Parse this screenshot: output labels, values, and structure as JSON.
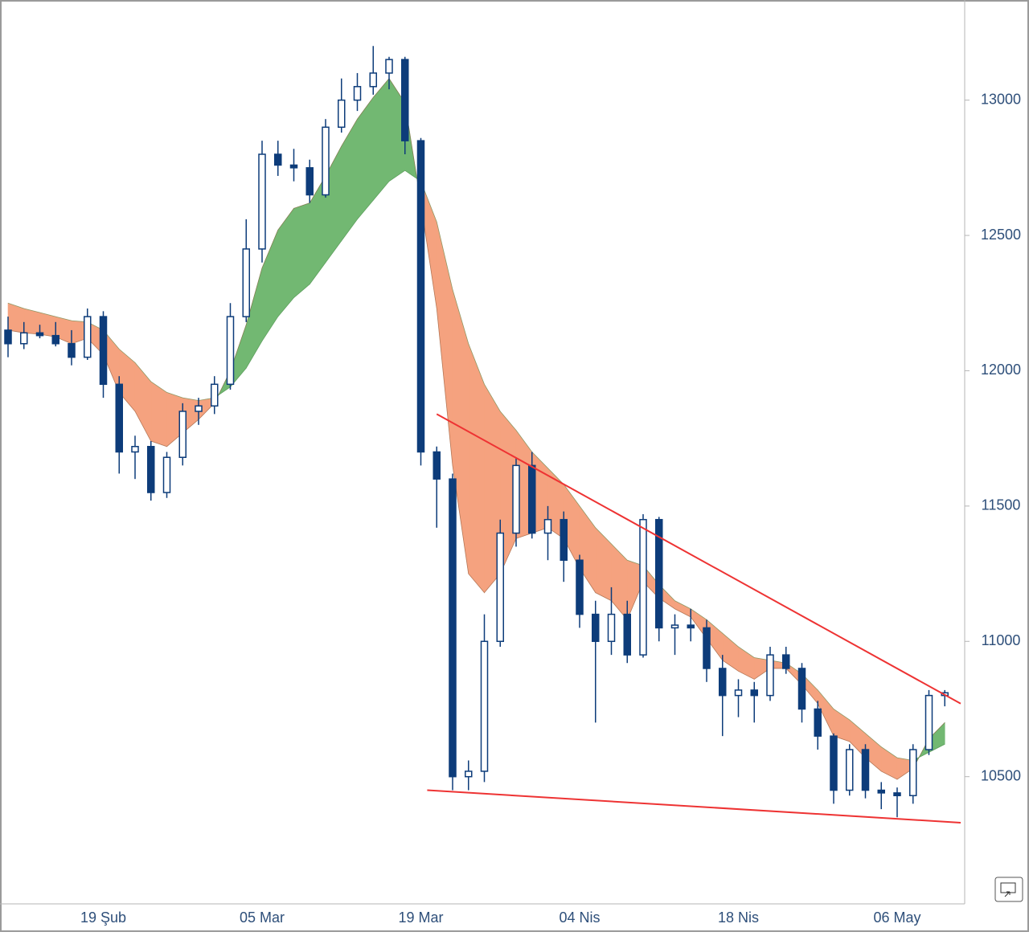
{
  "chart_data": {
    "type": "candlestick",
    "categories": [
      null,
      null,
      null,
      null,
      null,
      null,
      "19 Şub",
      null,
      null,
      null,
      null,
      null,
      null,
      null,
      null,
      null,
      "05 Mar",
      null,
      null,
      null,
      null,
      null,
      null,
      null,
      null,
      null,
      "19 Mar",
      null,
      null,
      null,
      null,
      null,
      null,
      null,
      null,
      null,
      "04 Nis",
      null,
      null,
      null,
      null,
      null,
      null,
      null,
      null,
      null,
      "18 Nis",
      null,
      null,
      null,
      null,
      null,
      null,
      null,
      null,
      null,
      "06 May",
      null,
      null,
      null
    ],
    "open": [
      12150,
      12100,
      12140,
      12130,
      12100,
      12050,
      12200,
      11950,
      11700,
      11720,
      11550,
      11680,
      11850,
      11870,
      11950,
      12200,
      12450,
      12800,
      12760,
      12750,
      12650,
      12900,
      13000,
      13050,
      13100,
      13150,
      12850,
      11700,
      11600,
      10500,
      10520,
      11000,
      11400,
      11650,
      11400,
      11450,
      11300,
      11100,
      11000,
      11100,
      10950,
      11450,
      11050,
      11060,
      11050,
      10900,
      10800,
      10820,
      10800,
      10950,
      10900,
      10750,
      10650,
      10450,
      10600,
      10450,
      10440,
      10430,
      10600,
      10800
    ],
    "high": [
      12200,
      12180,
      12170,
      12180,
      12150,
      12230,
      12220,
      11980,
      11760,
      11740,
      11700,
      11880,
      11900,
      11980,
      12250,
      12560,
      12850,
      12850,
      12820,
      12780,
      12930,
      13080,
      13100,
      13200,
      13160,
      13160,
      12860,
      11720,
      11620,
      10560,
      11100,
      11450,
      11680,
      11700,
      11500,
      11480,
      11320,
      11150,
      11200,
      11150,
      11470,
      11460,
      11100,
      11120,
      11080,
      10950,
      10860,
      10850,
      10980,
      10980,
      10920,
      10780,
      10660,
      10620,
      10620,
      10480,
      10460,
      10620,
      10820,
      10820
    ],
    "low": [
      12050,
      12080,
      12120,
      12090,
      12020,
      12040,
      11900,
      11620,
      11600,
      11520,
      11530,
      11650,
      11800,
      11840,
      11930,
      12180,
      12400,
      12720,
      12700,
      12620,
      12640,
      12880,
      12960,
      13020,
      13040,
      12800,
      11650,
      11420,
      10450,
      10450,
      10480,
      10980,
      11350,
      11380,
      11300,
      11220,
      11050,
      10700,
      10950,
      10920,
      10940,
      11000,
      10950,
      11000,
      10850,
      10650,
      10720,
      10700,
      10780,
      10880,
      10700,
      10600,
      10400,
      10430,
      10420,
      10380,
      10350,
      10400,
      10580,
      10760
    ],
    "close": [
      12100,
      12140,
      12130,
      12100,
      12050,
      12200,
      11950,
      11700,
      11720,
      11550,
      11680,
      11850,
      11870,
      11950,
      12200,
      12450,
      12800,
      12760,
      12750,
      12650,
      12900,
      13000,
      13050,
      13100,
      13150,
      12850,
      11700,
      11600,
      10500,
      10520,
      11000,
      11400,
      11650,
      11400,
      11450,
      11300,
      11100,
      11000,
      11100,
      10950,
      11450,
      11050,
      11060,
      11050,
      10900,
      10800,
      10820,
      10800,
      10950,
      10900,
      10750,
      10650,
      10450,
      10600,
      10450,
      10440,
      10430,
      10600,
      10800,
      10810
    ],
    "candle_color": "#0d3c7a",
    "ema_fast": [
      12150,
      12140,
      12135,
      12125,
      12100,
      12120,
      12060,
      11920,
      11850,
      11740,
      11720,
      11770,
      11820,
      11880,
      12000,
      12170,
      12380,
      12520,
      12600,
      12620,
      12720,
      12830,
      12930,
      13010,
      13080,
      12990,
      12620,
      12230,
      11650,
      11250,
      11180,
      11250,
      11380,
      11400,
      11420,
      11380,
      11270,
      11180,
      11150,
      11080,
      11220,
      11160,
      11120,
      11090,
      11010,
      10930,
      10890,
      10860,
      10900,
      10900,
      10840,
      10770,
      10650,
      10630,
      10570,
      10520,
      10490,
      10530,
      10640,
      10700
    ],
    "ema_slow": [
      12250,
      12230,
      12215,
      12200,
      12185,
      12180,
      12150,
      12080,
      12030,
      11960,
      11920,
      11900,
      11890,
      11900,
      11940,
      12010,
      12110,
      12200,
      12270,
      12320,
      12400,
      12480,
      12560,
      12630,
      12700,
      12740,
      12700,
      12550,
      12300,
      12100,
      11950,
      11850,
      11780,
      11700,
      11640,
      11580,
      11500,
      11420,
      11360,
      11300,
      11280,
      11210,
      11150,
      11120,
      11080,
      11030,
      10980,
      10940,
      10930,
      10920,
      10880,
      10820,
      10750,
      10710,
      10660,
      10610,
      10570,
      10560,
      10590,
      10620
    ],
    "band_up_color": "#72b872",
    "band_down_color": "#f5a27f",
    "trendlines": [
      {
        "color": "#ee3333",
        "x": [
          27.0,
          60.0
        ],
        "values": [
          11840,
          10770
        ]
      },
      {
        "color": "#ee3333",
        "x": [
          26.4,
          60.0
        ],
        "values": [
          10450,
          10330
        ]
      }
    ],
    "ylim": [
      10030,
      13370
    ],
    "yticks": [
      10500,
      11000,
      11500,
      12000,
      12500,
      13000
    ]
  }
}
